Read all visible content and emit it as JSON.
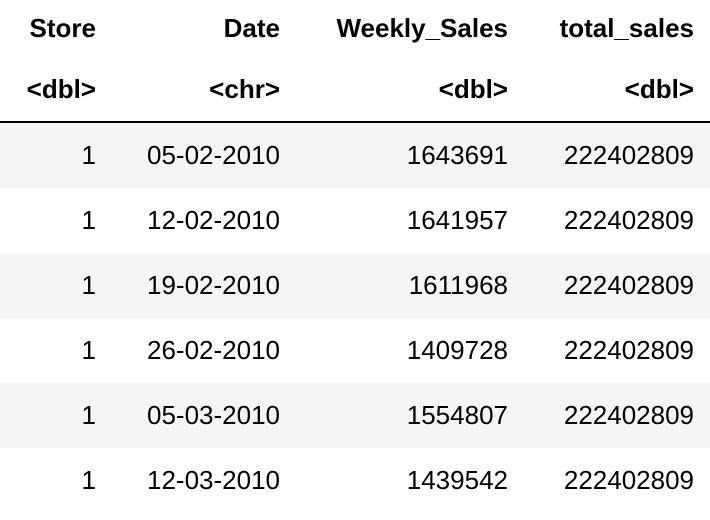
{
  "table": {
    "header": {
      "store": "Store",
      "date": "Date",
      "weekly_sales": "Weekly_Sales",
      "total_sales": "total_sales"
    },
    "types": {
      "store": "<dbl>",
      "date": "<chr>",
      "weekly_sales": "<dbl>",
      "total_sales": "<dbl>"
    },
    "rows": [
      {
        "store": "1",
        "date": "05-02-2010",
        "weekly_sales": "1643691",
        "total_sales": "222402809"
      },
      {
        "store": "1",
        "date": "12-02-2010",
        "weekly_sales": "1641957",
        "total_sales": "222402809"
      },
      {
        "store": "1",
        "date": "19-02-2010",
        "weekly_sales": "1611968",
        "total_sales": "222402809"
      },
      {
        "store": "1",
        "date": "26-02-2010",
        "weekly_sales": "1409728",
        "total_sales": "222402809"
      },
      {
        "store": "1",
        "date": "05-03-2010",
        "weekly_sales": "1554807",
        "total_sales": "222402809"
      },
      {
        "store": "1",
        "date": "12-03-2010",
        "weekly_sales": "1439542",
        "total_sales": "222402809"
      }
    ]
  },
  "colors": {
    "stripe": "#f5f5f5",
    "text": "#000000",
    "background": "#ffffff"
  }
}
